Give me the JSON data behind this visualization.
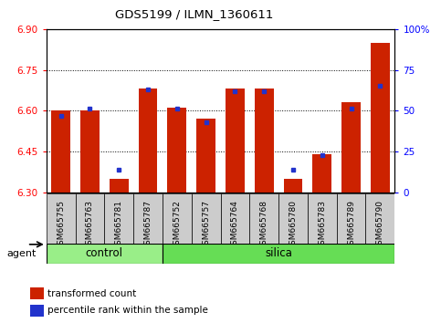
{
  "title": "GDS5199 / ILMN_1360611",
  "samples": [
    "GSM665755",
    "GSM665763",
    "GSM665781",
    "GSM665787",
    "GSM665752",
    "GSM665757",
    "GSM665764",
    "GSM665768",
    "GSM665780",
    "GSM665783",
    "GSM665789",
    "GSM665790"
  ],
  "groups": [
    "control",
    "control",
    "control",
    "control",
    "silica",
    "silica",
    "silica",
    "silica",
    "silica",
    "silica",
    "silica",
    "silica"
  ],
  "red_values": [
    6.6,
    6.6,
    6.35,
    6.68,
    6.61,
    6.57,
    6.68,
    6.68,
    6.35,
    6.44,
    6.63,
    6.85
  ],
  "blue_percentiles": [
    47,
    51,
    14,
    63,
    51,
    43,
    62,
    62,
    14,
    23,
    51,
    65
  ],
  "ymin": 6.3,
  "ymax": 6.9,
  "y2min": 0,
  "y2max": 100,
  "bar_color": "#cc2200",
  "blue_color": "#2233cc",
  "control_color": "#99ee88",
  "silica_color": "#66dd55",
  "sample_bg_color": "#cccccc",
  "agent_label": "agent",
  "group_labels": [
    "control",
    "silica"
  ],
  "legend_red": "transformed count",
  "legend_blue": "percentile rank within the sample",
  "yticks_left": [
    6.3,
    6.45,
    6.6,
    6.75,
    6.9
  ],
  "yticks_right": [
    0,
    25,
    50,
    75,
    100
  ],
  "n_control": 4,
  "n_silica": 8
}
